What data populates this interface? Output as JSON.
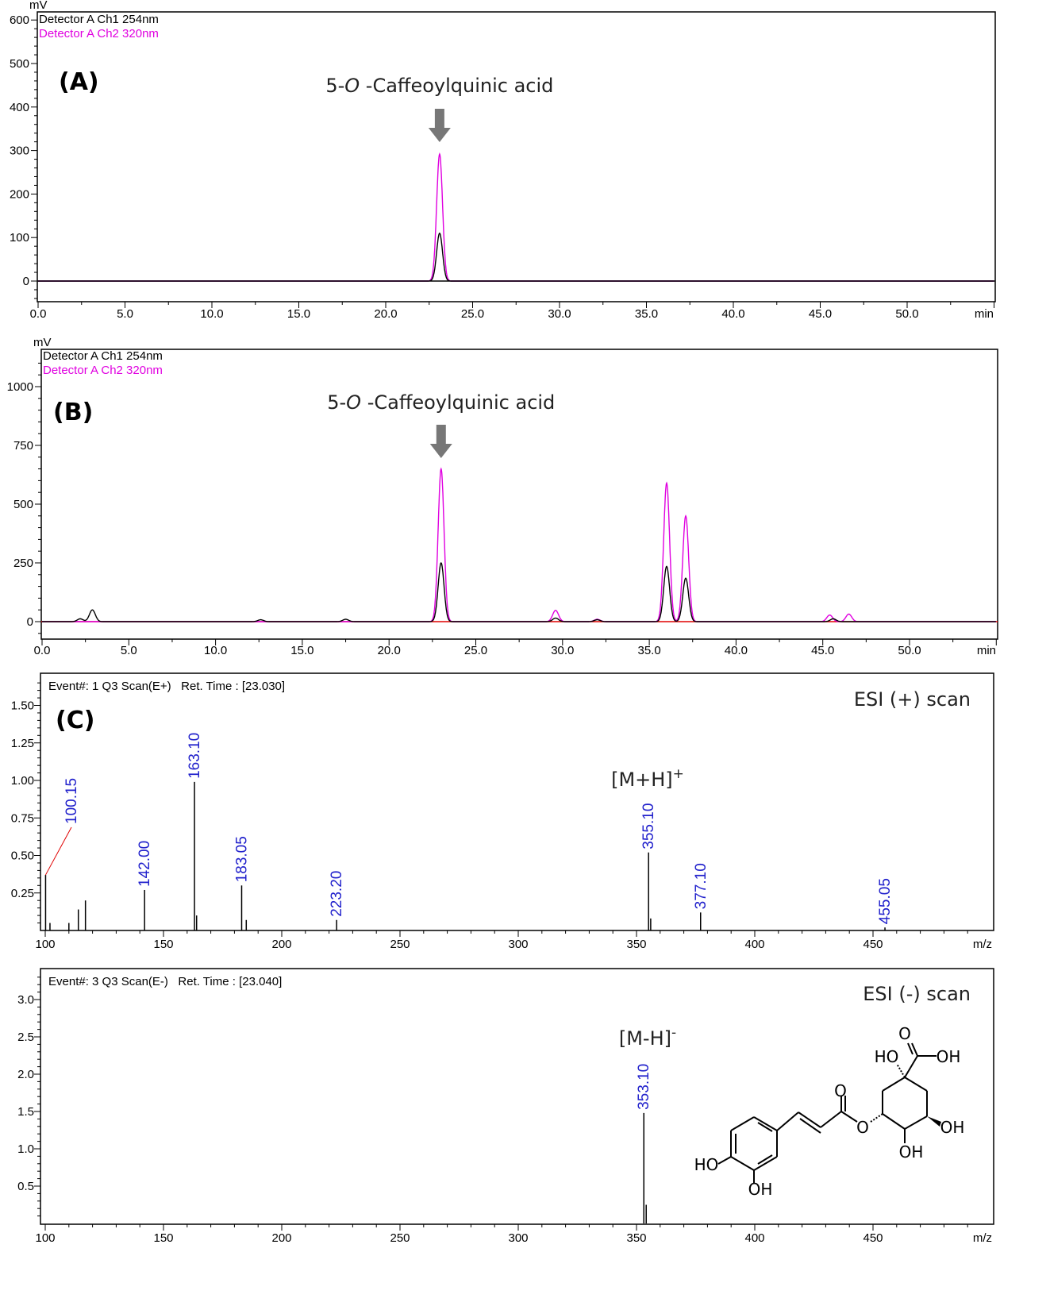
{
  "chart_data": [
    {
      "type": "line",
      "panel_label": "(A)",
      "ylabel": "mV",
      "xunit": "min",
      "xlim": [
        0,
        55
      ],
      "ylim": [
        -45,
        620
      ],
      "xticks": [
        "0.0",
        "5.0",
        "10.0",
        "15.0",
        "20.0",
        "25.0",
        "30.0",
        "35.0",
        "40.0",
        "45.0",
        "50.0"
      ],
      "yticks": [
        "0",
        "100",
        "200",
        "300",
        "400",
        "500",
        "600"
      ],
      "annotation": {
        "prefix": "5-",
        "italic": "O",
        "suffix": " -Caffeoylquinic acid",
        "rt": 23.1
      },
      "series": [
        {
          "name": "Detector A Ch1 254nm",
          "color": "#000000",
          "peaks": [
            {
              "rt": 23.1,
              "height": 110
            }
          ]
        },
        {
          "name": "Detector A Ch2 320nm",
          "color": "#e000e0",
          "peaks": [
            {
              "rt": 23.1,
              "height": 292
            }
          ]
        }
      ]
    },
    {
      "type": "line",
      "panel_label": "(B)",
      "ylabel": "mV",
      "xunit": "min",
      "xlim": [
        0,
        55
      ],
      "ylim": [
        -75,
        1140
      ],
      "xticks": [
        "0.0",
        "5.0",
        "10.0",
        "15.0",
        "20.0",
        "25.0",
        "30.0",
        "35.0",
        "40.0",
        "45.0",
        "50.0"
      ],
      "yticks": [
        "0",
        "250",
        "500",
        "750",
        "1000"
      ],
      "annotation": {
        "prefix": "5-",
        "italic": "O",
        "suffix": " -Caffeoylquinic acid",
        "rt": 23.0
      },
      "series": [
        {
          "name": "Detector A Ch1 254nm",
          "color": "#000000",
          "peaks": [
            {
              "rt": 2.2,
              "height": 12
            },
            {
              "rt": 2.9,
              "height": 50
            },
            {
              "rt": 12.6,
              "height": 8
            },
            {
              "rt": 17.5,
              "height": 10
            },
            {
              "rt": 23.0,
              "height": 250
            },
            {
              "rt": 29.6,
              "height": 15
            },
            {
              "rt": 32.0,
              "height": 8
            },
            {
              "rt": 36.0,
              "height": 235
            },
            {
              "rt": 37.1,
              "height": 185
            },
            {
              "rt": 45.6,
              "height": 12
            }
          ]
        },
        {
          "name": "Detector A Ch2 320nm",
          "color": "#e000e0",
          "peaks": [
            {
              "rt": 23.0,
              "height": 650
            },
            {
              "rt": 29.6,
              "height": 48
            },
            {
              "rt": 32.0,
              "height": 10
            },
            {
              "rt": 36.0,
              "height": 590
            },
            {
              "rt": 37.1,
              "height": 450
            },
            {
              "rt": 45.4,
              "height": 28
            },
            {
              "rt": 46.5,
              "height": 32
            }
          ]
        }
      ]
    },
    {
      "type": "bar",
      "panel_label": "(C)",
      "header": "Event#: 1 Q3 Scan(E+)   Ret. Time : [23.030]",
      "mode_label": "ESI (+) scan",
      "ion_label": "[M+H]",
      "ion_charge": "+",
      "xunit": "m/z",
      "xlim": [
        98,
        499
      ],
      "ylim": [
        0,
        1.7
      ],
      "xticks": [
        "100",
        "150",
        "200",
        "250",
        "300",
        "350",
        "400",
        "450"
      ],
      "yticks": [
        "0.25",
        "0.50",
        "0.75",
        "1.00",
        "1.25",
        "1.50"
      ],
      "peaks": [
        {
          "mz": 100.15,
          "intensity": 0.37,
          "label": "100.15"
        },
        {
          "mz": 102,
          "intensity": 0.05
        },
        {
          "mz": 110,
          "intensity": 0.05
        },
        {
          "mz": 114,
          "intensity": 0.14
        },
        {
          "mz": 117,
          "intensity": 0.2
        },
        {
          "mz": 142.0,
          "intensity": 0.27,
          "label": "142.00"
        },
        {
          "mz": 163.1,
          "intensity": 0.99,
          "label": "163.10"
        },
        {
          "mz": 164,
          "intensity": 0.1
        },
        {
          "mz": 183.05,
          "intensity": 0.3,
          "label": "183.05"
        },
        {
          "mz": 185,
          "intensity": 0.07
        },
        {
          "mz": 223.2,
          "intensity": 0.07,
          "label": "223.20"
        },
        {
          "mz": 355.1,
          "intensity": 0.52,
          "label": "355.10"
        },
        {
          "mz": 356,
          "intensity": 0.08
        },
        {
          "mz": 377.1,
          "intensity": 0.12,
          "label": "377.10"
        },
        {
          "mz": 455.05,
          "intensity": 0.02,
          "label": "455.05"
        }
      ]
    },
    {
      "type": "bar",
      "panel_label": "",
      "header": "Event#: 3 Q3 Scan(E-)   Ret. Time : [23.040]",
      "mode_label": "ESI (-) scan",
      "ion_label": "[M-H]",
      "ion_charge": "-",
      "xunit": "m/z",
      "xlim": [
        98,
        499
      ],
      "ylim": [
        0,
        3.4
      ],
      "xticks": [
        "100",
        "150",
        "200",
        "250",
        "300",
        "350",
        "400",
        "450"
      ],
      "yticks": [
        "0.5",
        "1.0",
        "1.5",
        "2.0",
        "2.5",
        "3.0"
      ],
      "peaks": [
        {
          "mz": 353.1,
          "intensity": 1.48,
          "label": "353.10"
        },
        {
          "mz": 354.1,
          "intensity": 0.25
        }
      ],
      "structure_labels": [
        "O",
        "HO",
        "OH",
        "O",
        "O",
        "OH",
        "OH",
        "HO",
        "OH"
      ]
    }
  ]
}
